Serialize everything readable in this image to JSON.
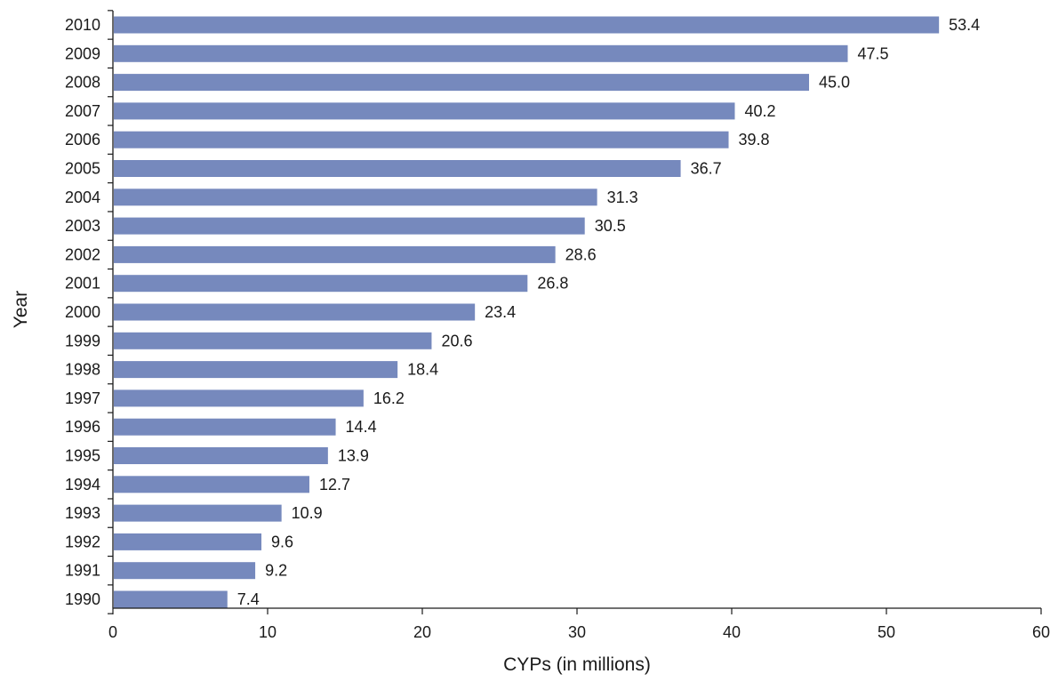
{
  "chart_data": {
    "type": "bar",
    "orientation": "horizontal",
    "title": "",
    "xlabel": "CYPs (in millions)",
    "ylabel": "Year",
    "xlim": [
      0,
      60
    ],
    "xticks": [
      0,
      10,
      20,
      30,
      40,
      50,
      60
    ],
    "grid": false,
    "bar_color": "#7689bd",
    "categories": [
      "2010",
      "2009",
      "2008",
      "2007",
      "2006",
      "2005",
      "2004",
      "2003",
      "2002",
      "2001",
      "2000",
      "1999",
      "1998",
      "1997",
      "1996",
      "1995",
      "1994",
      "1993",
      "1992",
      "1991",
      "1990"
    ],
    "values": [
      53.4,
      47.5,
      45.0,
      40.2,
      39.8,
      36.7,
      31.3,
      30.5,
      28.6,
      26.8,
      23.4,
      20.6,
      18.4,
      16.2,
      14.4,
      13.9,
      12.7,
      10.9,
      9.6,
      9.2,
      7.4
    ],
    "value_labels": [
      "53.4",
      "47.5",
      "45.0",
      "40.2",
      "39.8",
      "36.7",
      "31.3",
      "30.5",
      "28.6",
      "26.8",
      "23.4",
      "20.6",
      "18.4",
      "16.2",
      "14.4",
      "13.9",
      "12.7",
      "10.9",
      "9.6",
      "9.2",
      "7.4"
    ]
  }
}
